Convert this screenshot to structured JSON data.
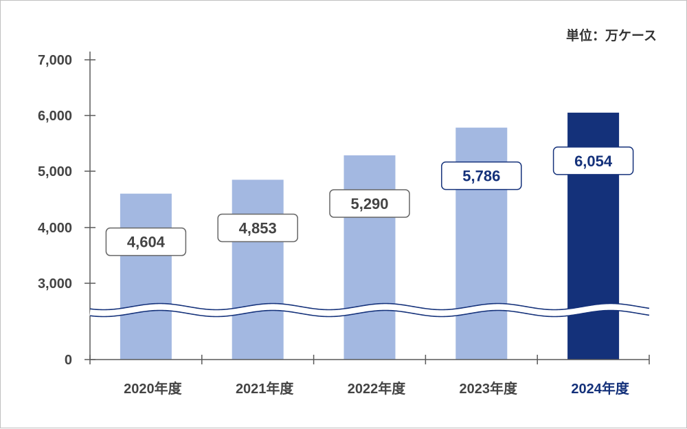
{
  "chart_data": {
    "type": "bar",
    "unit_label": "単位：万ケース",
    "categories": [
      "2020年度",
      "2021年度",
      "2022年度",
      "2023年度",
      "2024年度"
    ],
    "values": [
      4604,
      4853,
      5290,
      5786,
      6054
    ],
    "value_labels": [
      "4,604",
      "4,853",
      "5,290",
      "5,786",
      "6,054"
    ],
    "y_ticks": [
      {
        "value": 0,
        "label": "0"
      },
      {
        "value": 3000,
        "label": "3,000"
      },
      {
        "value": 4000,
        "label": "4,000"
      },
      {
        "value": 5000,
        "label": "5,000"
      },
      {
        "value": 6000,
        "label": "6,000"
      },
      {
        "value": 7000,
        "label": "7,000"
      }
    ],
    "ylim": [
      0,
      7000
    ],
    "axis_break": "between 0 and 3000",
    "grid": false,
    "legend": "none",
    "highlight_index": 4,
    "colors": {
      "bar": "#a3b8e1",
      "highlight": "#14317a",
      "axis": "#595959",
      "label_border": "#666666",
      "text": "#444444"
    }
  }
}
